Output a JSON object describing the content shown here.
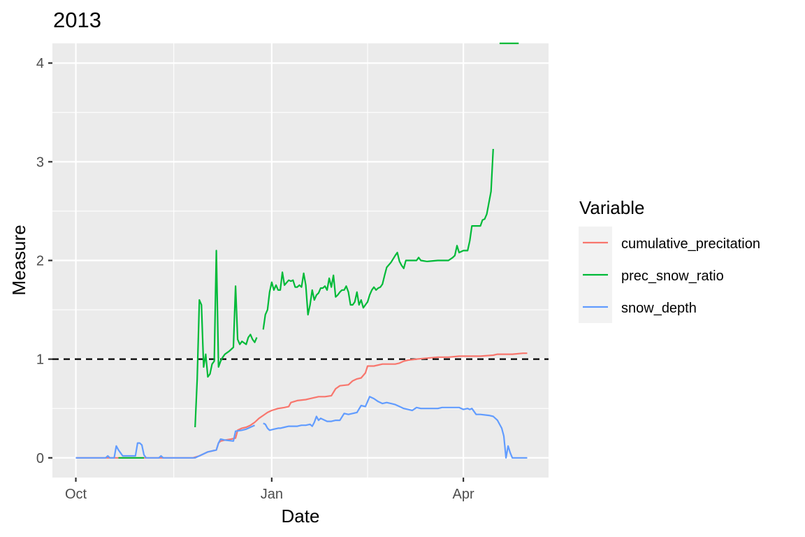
{
  "chart_data": {
    "type": "line",
    "title": "2013",
    "xlabel": "Date",
    "ylabel": "Measure",
    "x_ticks": [
      {
        "label": "Oct",
        "day": 0
      },
      {
        "label": "Jan",
        "day": 92
      },
      {
        "label": "Apr",
        "day": 182
      }
    ],
    "x_range_days": [
      -11,
      222
    ],
    "y_ticks": [
      0,
      1,
      2,
      3,
      4
    ],
    "ylim": [
      -0.2,
      4.2
    ],
    "grid": true,
    "reference_line": {
      "y": 1,
      "style": "dashed",
      "color": "#000000"
    },
    "legend": {
      "title": "Variable",
      "position": "right"
    },
    "series": [
      {
        "name": "cumulative_precitation",
        "color": "#F8766D",
        "points": [
          [
            0,
            0
          ],
          [
            30,
            0
          ],
          [
            45,
            0
          ],
          [
            55,
            0
          ],
          [
            58,
            0.02
          ],
          [
            60,
            0.04
          ],
          [
            62,
            0.06
          ],
          [
            64,
            0.07
          ],
          [
            66,
            0.08
          ],
          [
            67,
            0.15
          ],
          [
            68,
            0.17
          ],
          [
            70,
            0.18
          ],
          [
            73,
            0.19
          ],
          [
            75,
            0.2
          ],
          [
            76,
            0.28
          ],
          [
            78,
            0.3
          ],
          [
            80,
            0.31
          ],
          [
            82,
            0.33
          ],
          [
            84,
            0.36
          ],
          [
            86,
            0.4
          ],
          [
            88,
            0.43
          ],
          [
            90,
            0.46
          ],
          [
            92,
            0.48
          ],
          [
            95,
            0.5
          ],
          [
            98,
            0.51
          ],
          [
            100,
            0.52
          ],
          [
            101,
            0.56
          ],
          [
            104,
            0.58
          ],
          [
            108,
            0.59
          ],
          [
            110,
            0.6
          ],
          [
            112,
            0.61
          ],
          [
            114,
            0.62
          ],
          [
            117,
            0.62
          ],
          [
            120,
            0.63
          ],
          [
            122,
            0.7
          ],
          [
            124,
            0.73
          ],
          [
            128,
            0.74
          ],
          [
            130,
            0.78
          ],
          [
            132,
            0.8
          ],
          [
            134,
            0.81
          ],
          [
            136,
            0.86
          ],
          [
            137,
            0.93
          ],
          [
            140,
            0.93
          ],
          [
            144,
            0.95
          ],
          [
            150,
            0.95
          ],
          [
            152,
            0.96
          ],
          [
            154,
            0.98
          ],
          [
            156,
            0.99
          ],
          [
            160,
            1.0
          ],
          [
            165,
            1.01
          ],
          [
            170,
            1.02
          ],
          [
            175,
            1.02
          ],
          [
            180,
            1.03
          ],
          [
            185,
            1.03
          ],
          [
            190,
            1.03
          ],
          [
            196,
            1.04
          ],
          [
            198,
            1.05
          ],
          [
            205,
            1.05
          ],
          [
            210,
            1.06
          ],
          [
            212,
            1.06
          ]
        ]
      },
      {
        "name": "prec_snow_ratio",
        "color": "#00BA38",
        "segments": [
          [
            [
              20,
              0
            ],
            [
              32,
              0
            ]
          ],
          [
            [
              56,
              0.31
            ],
            [
              57,
              0.8
            ],
            [
              58,
              1.6
            ],
            [
              59,
              1.55
            ],
            [
              60,
              0.92
            ],
            [
              61,
              1.05
            ],
            [
              62,
              0.82
            ],
            [
              63,
              0.85
            ],
            [
              64,
              0.95
            ],
            [
              65,
              0.98
            ],
            [
              66,
              2.1
            ],
            [
              67,
              0.92
            ],
            [
              68,
              0.98
            ],
            [
              69,
              1.02
            ],
            [
              70,
              1.05
            ],
            [
              72,
              1.08
            ],
            [
              73,
              1.1
            ],
            [
              74,
              1.12
            ],
            [
              75,
              1.74
            ],
            [
              76,
              1.2
            ],
            [
              77,
              1.15
            ],
            [
              78,
              1.18
            ],
            [
              80,
              1.15
            ],
            [
              81,
              1.22
            ],
            [
              82,
              1.25
            ],
            [
              83,
              1.2
            ],
            [
              84,
              1.17
            ],
            [
              85,
              1.22
            ]
          ],
          [
            [
              88,
              1.3
            ],
            [
              89,
              1.45
            ],
            [
              90,
              1.5
            ],
            [
              91,
              1.68
            ],
            [
              92,
              1.78
            ],
            [
              93,
              1.7
            ],
            [
              94,
              1.75
            ],
            [
              95,
              1.7
            ],
            [
              96,
              1.7
            ],
            [
              97,
              1.88
            ],
            [
              98,
              1.75
            ],
            [
              100,
              1.8
            ],
            [
              101,
              1.79
            ],
            [
              102,
              1.8
            ],
            [
              103,
              1.73
            ],
            [
              104,
              1.73
            ],
            [
              105,
              1.75
            ],
            [
              106,
              1.73
            ],
            [
              107,
              1.87
            ],
            [
              108,
              1.75
            ],
            [
              109,
              1.45
            ],
            [
              110,
              1.55
            ],
            [
              111,
              1.7
            ],
            [
              112,
              1.6
            ],
            [
              113,
              1.65
            ],
            [
              114,
              1.67
            ],
            [
              115,
              1.72
            ],
            [
              116,
              1.72
            ],
            [
              117,
              1.74
            ],
            [
              118,
              1.7
            ],
            [
              119,
              1.82
            ],
            [
              120,
              1.73
            ],
            [
              121,
              1.85
            ],
            [
              122,
              1.63
            ],
            [
              123,
              1.65
            ],
            [
              124,
              1.68
            ],
            [
              125,
              1.7
            ],
            [
              126,
              1.7
            ],
            [
              127,
              1.74
            ],
            [
              128,
              1.68
            ],
            [
              129,
              1.55
            ],
            [
              130,
              1.55
            ],
            [
              131,
              1.58
            ],
            [
              132,
              1.68
            ],
            [
              133,
              1.55
            ],
            [
              134,
              1.6
            ],
            [
              135,
              1.52
            ],
            [
              136,
              1.55
            ],
            [
              137,
              1.58
            ],
            [
              138,
              1.65
            ],
            [
              139,
              1.7
            ],
            [
              140,
              1.73
            ],
            [
              141,
              1.7
            ],
            [
              142,
              1.72
            ],
            [
              143,
              1.73
            ],
            [
              144,
              1.76
            ],
            [
              145,
              1.85
            ],
            [
              146,
              1.93
            ],
            [
              148,
              1.98
            ],
            [
              150,
              2.05
            ],
            [
              151,
              2.08
            ],
            [
              152,
              1.99
            ],
            [
              153,
              1.95
            ],
            [
              154,
              1.92
            ],
            [
              155,
              2.0
            ],
            [
              158,
              2.0
            ],
            [
              160,
              2.0
            ],
            [
              161,
              2.03
            ],
            [
              162,
              2.0
            ],
            [
              165,
              1.99
            ],
            [
              170,
              2.0
            ],
            [
              175,
              2.0
            ],
            [
              177,
              2.03
            ],
            [
              178,
              2.05
            ],
            [
              179,
              2.15
            ],
            [
              180,
              2.08
            ],
            [
              181,
              2.09
            ],
            [
              182,
              2.1
            ],
            [
              184,
              2.1
            ],
            [
              185,
              2.2
            ],
            [
              186,
              2.35
            ],
            [
              188,
              2.35
            ],
            [
              190,
              2.35
            ],
            [
              191,
              2.41
            ],
            [
              192,
              2.42
            ],
            [
              193,
              2.47
            ],
            [
              195,
              2.7
            ],
            [
              196,
              3.13
            ]
          ],
          [
            [
              199,
              4.2
            ],
            [
              208,
              4.2
            ]
          ]
        ]
      },
      {
        "name": "snow_depth",
        "color": "#619CFF",
        "segments": [
          [
            [
              0,
              0
            ],
            [
              14,
              0
            ],
            [
              15,
              0.02
            ],
            [
              16,
              0
            ],
            [
              18,
              0
            ],
            [
              19,
              0.12
            ],
            [
              20,
              0.08
            ],
            [
              21,
              0.05
            ],
            [
              22,
              0.02
            ],
            [
              23,
              0.02
            ],
            [
              24,
              0.02
            ],
            [
              26,
              0.02
            ],
            [
              28,
              0.02
            ],
            [
              29,
              0.15
            ],
            [
              30,
              0.15
            ],
            [
              31,
              0.13
            ],
            [
              32,
              0.03
            ],
            [
              33,
              0
            ],
            [
              39,
              0
            ],
            [
              40,
              0.02
            ],
            [
              41,
              0
            ],
            [
              50,
              0
            ],
            [
              56,
              0
            ],
            [
              58,
              0.02
            ],
            [
              60,
              0.04
            ],
            [
              62,
              0.06
            ],
            [
              64,
              0.07
            ],
            [
              66,
              0.08
            ],
            [
              67,
              0.15
            ],
            [
              68,
              0.19
            ],
            [
              70,
              0.18
            ],
            [
              74,
              0.17
            ],
            [
              75,
              0.27
            ],
            [
              78,
              0.28
            ],
            [
              80,
              0.29
            ],
            [
              82,
              0.31
            ],
            [
              84,
              0.33
            ]
          ],
          [
            [
              88,
              0.35
            ],
            [
              89,
              0.34
            ],
            [
              90,
              0.3
            ],
            [
              91,
              0.28
            ],
            [
              93,
              0.29
            ],
            [
              95,
              0.3
            ],
            [
              96,
              0.3
            ],
            [
              98,
              0.31
            ],
            [
              100,
              0.32
            ],
            [
              104,
              0.32
            ],
            [
              106,
              0.33
            ],
            [
              108,
              0.33
            ],
            [
              110,
              0.34
            ],
            [
              111,
              0.32
            ],
            [
              112,
              0.36
            ],
            [
              113,
              0.42
            ],
            [
              114,
              0.38
            ],
            [
              115,
              0.4
            ],
            [
              116,
              0.39
            ],
            [
              118,
              0.37
            ],
            [
              120,
              0.37
            ],
            [
              122,
              0.38
            ],
            [
              124,
              0.38
            ],
            [
              126,
              0.45
            ],
            [
              128,
              0.44
            ],
            [
              130,
              0.45
            ],
            [
              132,
              0.46
            ],
            [
              134,
              0.53
            ],
            [
              136,
              0.52
            ],
            [
              138,
              0.62
            ],
            [
              140,
              0.6
            ],
            [
              142,
              0.57
            ],
            [
              144,
              0.55
            ],
            [
              146,
              0.56
            ],
            [
              148,
              0.55
            ],
            [
              150,
              0.54
            ],
            [
              152,
              0.52
            ],
            [
              154,
              0.5
            ],
            [
              156,
              0.49
            ],
            [
              158,
              0.48
            ],
            [
              160,
              0.51
            ],
            [
              162,
              0.5
            ],
            [
              164,
              0.5
            ],
            [
              166,
              0.5
            ],
            [
              170,
              0.5
            ],
            [
              172,
              0.51
            ],
            [
              176,
              0.51
            ],
            [
              180,
              0.51
            ],
            [
              182,
              0.49
            ],
            [
              184,
              0.5
            ],
            [
              185,
              0.49
            ],
            [
              186,
              0.5
            ],
            [
              188,
              0.44
            ],
            [
              190,
              0.44
            ],
            [
              194,
              0.43
            ],
            [
              196,
              0.42
            ],
            [
              198,
              0.38
            ],
            [
              200,
              0.3
            ],
            [
              201,
              0.22
            ],
            [
              202,
              0.0
            ],
            [
              203,
              0.12
            ],
            [
              204,
              0.05
            ],
            [
              205,
              0.0
            ],
            [
              206,
              0.0
            ],
            [
              212,
              0.0
            ]
          ]
        ]
      }
    ]
  }
}
